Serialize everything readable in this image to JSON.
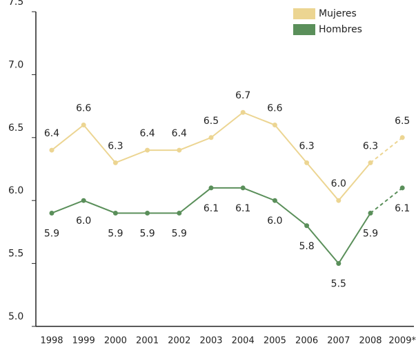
{
  "chart_data": {
    "type": "line",
    "categories": [
      "1998",
      "1999",
      "2000",
      "2001",
      "2002",
      "2003",
      "2004",
      "2005",
      "2006",
      "2007",
      "2008",
      "2009*"
    ],
    "series": [
      {
        "name": "Mujeres",
        "color": "#ecd592",
        "values": [
          6.4,
          6.6,
          6.3,
          6.4,
          6.4,
          6.5,
          6.7,
          6.6,
          6.3,
          6.0,
          6.3,
          6.5
        ],
        "value_labels": [
          "6.4",
          "6.6",
          "6.3",
          "6.4",
          "6.4",
          "6.5",
          "6.7",
          "6.6",
          "6.3",
          "6.0",
          "6.3",
          "6.5"
        ]
      },
      {
        "name": "Hombres",
        "color": "#5a8f5a",
        "values": [
          5.9,
          6.0,
          5.9,
          5.9,
          5.9,
          6.1,
          6.1,
          6.0,
          5.8,
          5.5,
          5.9,
          6.1
        ],
        "value_labels": [
          "5.9",
          "6.0",
          "5.9",
          "5.9",
          "5.9",
          "6.1",
          "6.1",
          "6.0",
          "5.8",
          "5.5",
          "5.9",
          "6.1"
        ]
      }
    ],
    "ylim": [
      5.0,
      7.5
    ],
    "yticks": [
      {
        "value": 5.0,
        "label": "5.0"
      },
      5.5,
      {
        "value": 6.0,
        "label": "6.0"
      },
      6.5,
      {
        "value": 7.0,
        "label": "7.0"
      },
      7.5
    ],
    "dashed_last_segment": true,
    "legend": "top-right"
  }
}
